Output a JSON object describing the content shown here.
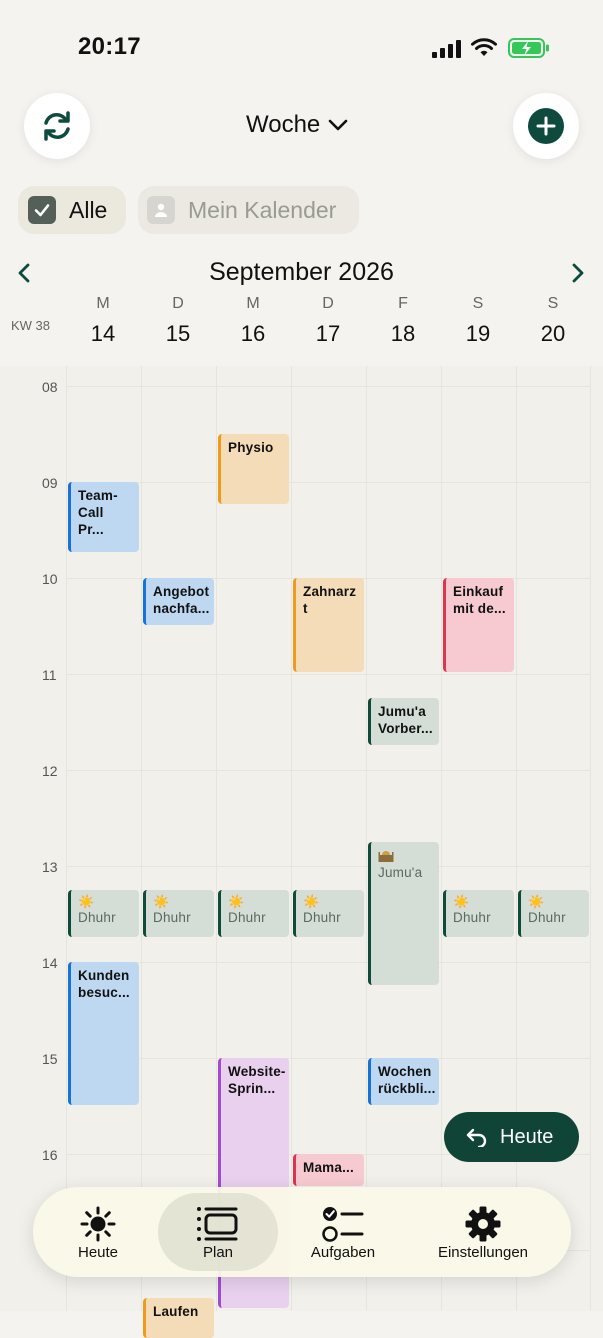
{
  "status_bar": {
    "time": "20:17"
  },
  "header": {
    "view_label": "Woche"
  },
  "filters": {
    "all_label": "Alle",
    "my_calendar_label": "Mein Kalender"
  },
  "calendar": {
    "month_title": "September 2026",
    "week_label": "KW 38",
    "days": [
      {
        "name": "M",
        "date": "14"
      },
      {
        "name": "D",
        "date": "15"
      },
      {
        "name": "M",
        "date": "16"
      },
      {
        "name": "D",
        "date": "17"
      },
      {
        "name": "F",
        "date": "18"
      },
      {
        "name": "S",
        "date": "19"
      },
      {
        "name": "S",
        "date": "20"
      }
    ],
    "hours": [
      "08",
      "09",
      "10",
      "11",
      "12",
      "13",
      "14",
      "15",
      "16"
    ],
    "events": [
      {
        "title": "Physio"
      },
      {
        "title": "Team-Call Pr..."
      },
      {
        "title": "Angebot nachfa..."
      },
      {
        "title": "Zahnarzt"
      },
      {
        "title": "Einkauf mit de..."
      },
      {
        "title": "Jumu'a Vorber..."
      },
      {
        "title": "Jumu'a"
      },
      {
        "title": "Dhuhr"
      },
      {
        "title": "Kunden besuc..."
      },
      {
        "title": "Website-Sprin..."
      },
      {
        "title": "Wochen rückbli..."
      },
      {
        "title": "Mama..."
      },
      {
        "title": "Laufen"
      }
    ]
  },
  "floating_button": {
    "label": "Heute"
  },
  "bottom_nav": {
    "items": [
      {
        "label": "Heute",
        "icon": "sun-icon"
      },
      {
        "label": "Plan",
        "icon": "plan-icon"
      },
      {
        "label": "Aufgaben",
        "icon": "tasks-icon"
      },
      {
        "label": "Einstellungen",
        "icon": "gear-icon"
      }
    ]
  },
  "colors": {
    "accent": "#0F4A3D",
    "blue": "#1672D6",
    "orange": "#EE9A1D",
    "red": "#DC3550",
    "purple": "#A24CCD"
  }
}
